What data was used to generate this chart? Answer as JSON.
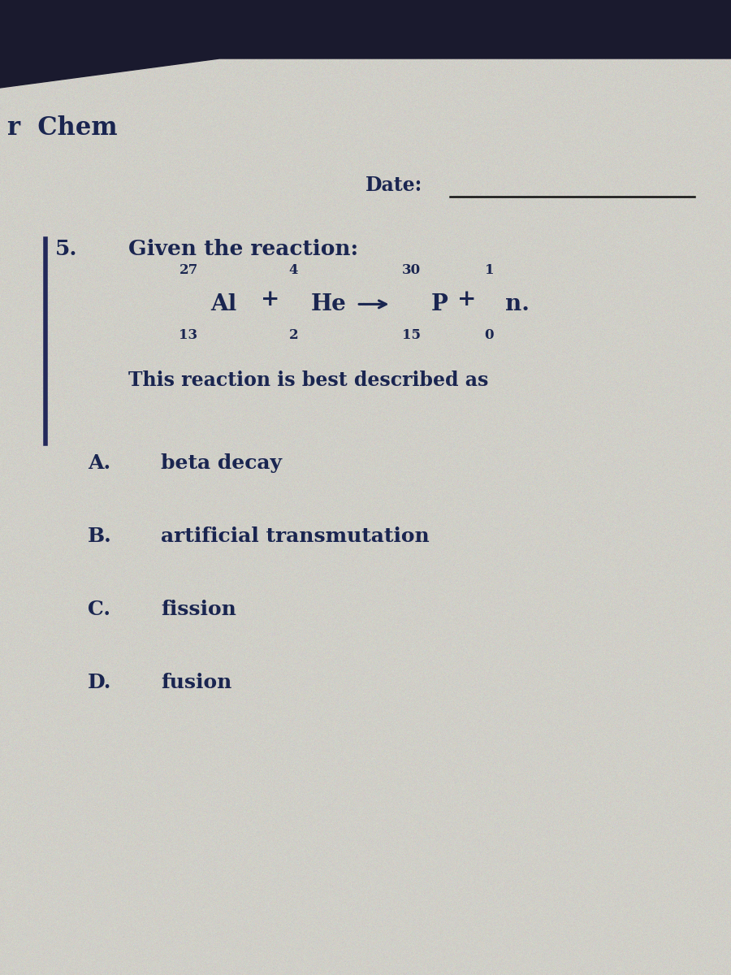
{
  "background_color": "#d0cfc8",
  "top_bar_color": "#1a1a2e",
  "text_color": "#1a2550",
  "header_text": "r  Chem",
  "date_label": "Date:",
  "question_number": "5.",
  "question_text": "Given the reaction:",
  "description_text": "This reaction is best described as",
  "choices": [
    [
      "A.",
      "beta decay"
    ],
    [
      "B.",
      "artificial transmutation"
    ],
    [
      "C.",
      "fission"
    ],
    [
      "D.",
      "fusion"
    ]
  ],
  "left_bar_color": "#22285a",
  "eq_superscripts": [
    "27",
    "4",
    "30",
    "1"
  ],
  "eq_subscripts": [
    "13",
    "2",
    "15",
    "0"
  ],
  "eq_elements": [
    "Al",
    "He",
    "P",
    "n."
  ],
  "eq_operators": [
    "+",
    "→",
    "+"
  ]
}
